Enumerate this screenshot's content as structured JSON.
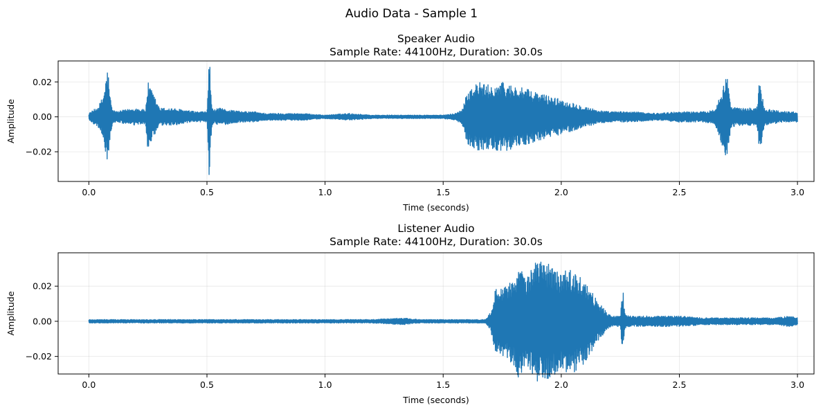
{
  "figure": {
    "suptitle": "Audio Data - Sample 1"
  },
  "chart_data": [
    {
      "type": "line",
      "title_line1": "Speaker Audio",
      "title_line2": "Sample Rate: 44100Hz, Duration: 30.0s",
      "xlabel": "Time (seconds)",
      "ylabel": "Amplitude",
      "xlim": [
        -0.13,
        3.07
      ],
      "ylim": [
        -0.037,
        0.032
      ],
      "xticks": [
        0.0,
        0.5,
        1.0,
        1.5,
        2.0,
        2.5,
        3.0
      ],
      "xtick_labels": [
        "0.0",
        "0.5",
        "1.0",
        "1.5",
        "2.0",
        "2.5",
        "3.0"
      ],
      "yticks": [
        -0.02,
        0.0,
        0.02
      ],
      "ytick_labels": [
        "−0.02",
        "0.00",
        "0.02"
      ],
      "grid": true,
      "color": "#1f77b4",
      "series": [
        {
          "x": [
            0.0,
            0.02,
            0.04,
            0.06,
            0.07,
            0.08,
            0.09,
            0.1,
            0.12,
            0.15,
            0.2,
            0.24,
            0.25,
            0.3,
            0.35,
            0.4,
            0.45,
            0.5,
            0.51,
            0.52,
            0.53,
            0.55,
            0.6,
            0.65,
            0.7,
            0.75,
            0.8,
            0.9,
            1.0,
            1.1,
            1.2,
            1.3,
            1.4,
            1.5,
            1.55,
            1.58,
            1.6,
            1.65,
            1.7,
            1.75,
            1.8,
            1.85,
            1.9,
            1.95,
            2.0,
            2.05,
            2.1,
            2.15,
            2.2,
            2.3,
            2.4,
            2.5,
            2.6,
            2.65,
            2.7,
            2.72,
            2.75,
            2.8,
            2.83,
            2.84,
            2.86,
            2.9,
            2.95,
            3.0
          ],
          "env": [
            0.002,
            0.004,
            0.006,
            0.012,
            0.02,
            0.029,
            0.012,
            0.004,
            0.003,
            0.004,
            0.005,
            0.004,
            0.02,
            0.005,
            0.005,
            0.004,
            0.003,
            0.003,
            0.037,
            0.006,
            0.004,
            0.005,
            0.004,
            0.003,
            0.003,
            0.002,
            0.002,
            0.002,
            0.001,
            0.002,
            0.001,
            0.001,
            0.001,
            0.001,
            0.002,
            0.004,
            0.015,
            0.02,
            0.018,
            0.02,
            0.018,
            0.016,
            0.014,
            0.012,
            0.01,
            0.008,
            0.006,
            0.004,
            0.003,
            0.003,
            0.002,
            0.003,
            0.003,
            0.004,
            0.025,
            0.006,
            0.005,
            0.005,
            0.006,
            0.023,
            0.005,
            0.004,
            0.003,
            0.003
          ]
        }
      ]
    },
    {
      "type": "line",
      "title_line1": "Listener Audio",
      "title_line2": "Sample Rate: 44100Hz, Duration: 30.0s",
      "xlabel": "Time (seconds)",
      "ylabel": "Amplitude",
      "xlim": [
        -0.13,
        3.07
      ],
      "ylim": [
        -0.03,
        0.039
      ],
      "xticks": [
        0.0,
        0.5,
        1.0,
        1.5,
        2.0,
        2.5,
        3.0
      ],
      "xtick_labels": [
        "0.0",
        "0.5",
        "1.0",
        "1.5",
        "2.0",
        "2.5",
        "3.0"
      ],
      "yticks": [
        -0.02,
        0.0,
        0.02
      ],
      "ytick_labels": [
        "−0.02",
        "0.00",
        "0.02"
      ],
      "grid": true,
      "color": "#1f77b4",
      "series": [
        {
          "x": [
            0.0,
            0.2,
            0.4,
            0.6,
            0.8,
            1.0,
            1.2,
            1.33,
            1.4,
            1.5,
            1.6,
            1.68,
            1.7,
            1.72,
            1.75,
            1.8,
            1.82,
            1.85,
            1.9,
            1.95,
            2.0,
            2.05,
            2.1,
            2.15,
            2.2,
            2.22,
            2.25,
            2.26,
            2.27,
            2.3,
            2.4,
            2.5,
            2.6,
            2.7,
            2.8,
            2.9,
            2.97,
            3.0
          ],
          "env": [
            0.001,
            0.001,
            0.001,
            0.001,
            0.001,
            0.001,
            0.001,
            0.002,
            0.001,
            0.001,
            0.001,
            0.001,
            0.005,
            0.018,
            0.02,
            0.025,
            0.033,
            0.025,
            0.035,
            0.033,
            0.028,
            0.03,
            0.024,
            0.012,
            0.004,
            0.003,
            0.003,
            0.02,
            0.004,
            0.003,
            0.003,
            0.003,
            0.002,
            0.002,
            0.002,
            0.002,
            0.003,
            0.002
          ]
        }
      ]
    }
  ]
}
